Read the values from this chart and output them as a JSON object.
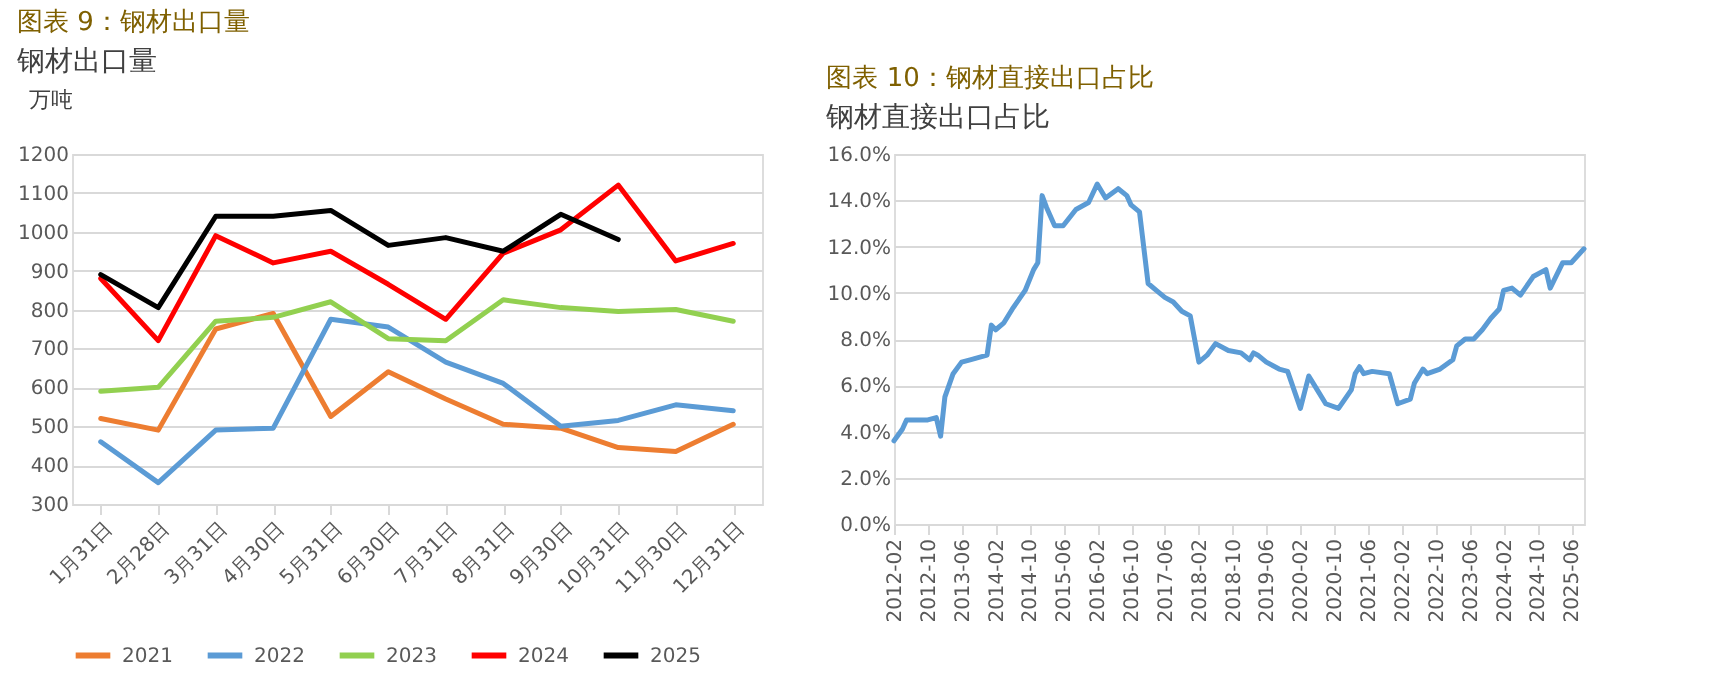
{
  "chart_data": [
    {
      "type": "line",
      "title": "图表 9：钢材出口量",
      "subtitle": "钢材出口量",
      "ylabel": "万吨",
      "categories": [
        "1月31日",
        "2月28日",
        "3月31日",
        "4月30日",
        "5月31日",
        "6月30日",
        "7月31日",
        "8月31日",
        "9月30日",
        "10月31日",
        "11月30日",
        "12月31日"
      ],
      "series": [
        {
          "name": "2021",
          "color": "#ed7d31",
          "values": [
            520,
            490,
            750,
            790,
            525,
            640,
            570,
            505,
            495,
            445,
            435,
            505
          ]
        },
        {
          "name": "2022",
          "color": "#5b9bd5",
          "values": [
            460,
            355,
            490,
            495,
            775,
            755,
            665,
            610,
            500,
            515,
            555,
            540
          ]
        },
        {
          "name": "2023",
          "color": "#92d050",
          "values": [
            590,
            600,
            770,
            780,
            820,
            725,
            720,
            825,
            805,
            795,
            800,
            770
          ]
        },
        {
          "name": "2024",
          "color": "#ff0000",
          "values": [
            880,
            720,
            990,
            920,
            950,
            865,
            775,
            945,
            1005,
            1120,
            925,
            970
          ]
        },
        {
          "name": "2025",
          "color": "#000000",
          "values": [
            890,
            805,
            1040,
            1040,
            1055,
            965,
            985,
            950,
            1045,
            980,
            null,
            null
          ]
        }
      ],
      "ylim": [
        300,
        1200
      ],
      "yticks": [
        300,
        400,
        500,
        600,
        700,
        800,
        900,
        1000,
        1100,
        1200
      ],
      "grid": "y",
      "legend": "bottom",
      "marker": "none",
      "line_style": "solid"
    },
    {
      "type": "line",
      "title": "图表 10：钢材直接出口占比",
      "subtitle": "钢材直接出口占比",
      "x": [
        "2012-02",
        "2012-04",
        "2012-05",
        "2012-08",
        "2012-10",
        "2012-12",
        "2013-01",
        "2013-02",
        "2013-04",
        "2013-06",
        "2013-08",
        "2013-12",
        "2014-01",
        "2014-02",
        "2014-04",
        "2014-06",
        "2014-09",
        "2014-11",
        "2014-12",
        "2015-01",
        "2015-02",
        "2015-04",
        "2015-06",
        "2015-09",
        "2015-12",
        "2016-02",
        "2016-04",
        "2016-07",
        "2016-09",
        "2016-10",
        "2016-12",
        "2017-02",
        "2017-04",
        "2017-06",
        "2017-08",
        "2017-10",
        "2017-12",
        "2018-02",
        "2018-04",
        "2018-06",
        "2018-09",
        "2018-12",
        "2019-02",
        "2019-03",
        "2019-04",
        "2019-06",
        "2019-09",
        "2019-11",
        "2020-02",
        "2020-04",
        "2020-06",
        "2020-08",
        "2020-11",
        "2021-02",
        "2021-03",
        "2021-04",
        "2021-05",
        "2021-07",
        "2021-11",
        "2022-01",
        "2022-04",
        "2022-05",
        "2022-07",
        "2022-08",
        "2022-11",
        "2023-02",
        "2023-03",
        "2023-05",
        "2023-07",
        "2023-09",
        "2023-11",
        "2024-01",
        "2024-02",
        "2024-04",
        "2024-06",
        "2024-09",
        "2024-12",
        "2025-01",
        "2025-04",
        "2025-06",
        "2025-09"
      ],
      "series": [
        {
          "color": "#5b9bd5",
          "values": [
            3.6,
            4.1,
            4.5,
            4.5,
            4.5,
            4.6,
            3.8,
            5.5,
            6.5,
            7.0,
            7.1,
            7.3,
            8.6,
            8.4,
            8.7,
            9.3,
            10.1,
            11.0,
            11.3,
            14.2,
            13.7,
            12.9,
            12.9,
            13.6,
            13.9,
            14.7,
            14.1,
            14.5,
            14.2,
            13.8,
            13.5,
            10.4,
            10.1,
            9.8,
            9.6,
            9.2,
            9.0,
            7.0,
            7.3,
            7.8,
            7.5,
            7.4,
            7.1,
            7.4,
            7.3,
            7.0,
            6.7,
            6.6,
            5.0,
            6.4,
            5.8,
            5.2,
            5.0,
            5.8,
            6.5,
            6.8,
            6.5,
            6.6,
            6.5,
            5.2,
            5.4,
            6.1,
            6.7,
            6.5,
            6.7,
            7.1,
            7.7,
            8.0,
            8.0,
            8.4,
            8.9,
            9.3,
            10.1,
            10.2,
            9.9,
            10.7,
            11.0,
            10.2,
            11.3,
            11.3,
            11.9
          ]
        }
      ],
      "xlim": [
        "2012-02",
        "2025-09"
      ],
      "xticks": [
        "2012-02",
        "2012-10",
        "2013-06",
        "2014-02",
        "2014-10",
        "2015-06",
        "2016-02",
        "2016-10",
        "2017-06",
        "2018-02",
        "2018-10",
        "2019-06",
        "2020-02",
        "2020-10",
        "2021-06",
        "2022-02",
        "2022-10",
        "2023-06",
        "2024-02",
        "2024-10",
        "2025-06"
      ],
      "ylim": [
        0,
        16
      ],
      "yticks": [
        {
          "value": 0,
          "label": "0.0%"
        },
        {
          "value": 2,
          "label": "2.0%"
        },
        {
          "value": 4,
          "label": "4.0%"
        },
        {
          "value": 6,
          "label": "6.0%"
        },
        {
          "value": 8,
          "label": "8.0%"
        },
        {
          "value": 10,
          "label": "10.0%"
        },
        {
          "value": 12,
          "label": "12.0%"
        },
        {
          "value": 14,
          "label": "14.0%"
        },
        {
          "value": 16,
          "label": "16.0%"
        }
      ],
      "grid": "y",
      "marker": "none",
      "line_style": "solid"
    }
  ]
}
